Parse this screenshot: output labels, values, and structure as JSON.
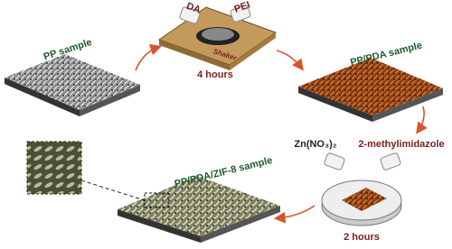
{
  "samples": {
    "pp": "PP sample",
    "pp_pda": "PP/PDA sample",
    "pp_pda_zif8": "PP/PDA/ZIF-8 sample"
  },
  "step1": {
    "reagent_a": "DA",
    "reagent_b": "PEI",
    "device": "Shaker",
    "time": "4 hours"
  },
  "step2": {
    "reagent_a": "Zn(NO₃)₂",
    "reagent_b": "2-methylimidazole",
    "time": "2 hours"
  }
}
